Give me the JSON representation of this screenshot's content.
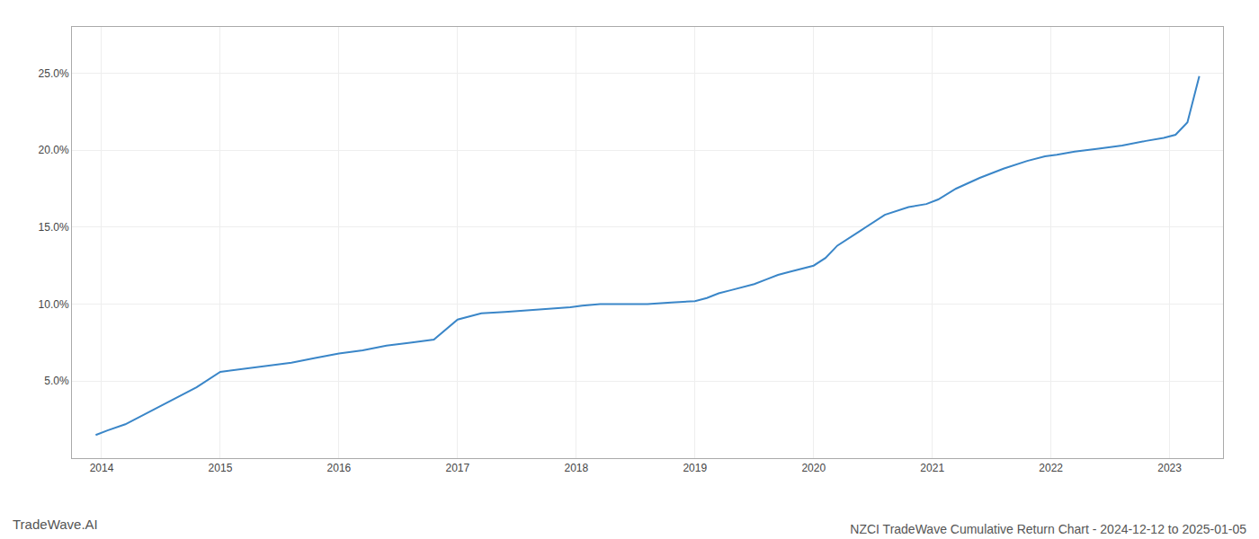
{
  "chart_data": {
    "type": "line",
    "title": "NZCI TradeWave Cumulative Return Chart - 2024-12-12 to 2025-01-05",
    "annotations": [
      "TradeWave.AI"
    ],
    "color": "#3a86c8",
    "grid": true,
    "x": [
      2013.95,
      2014.05,
      2014.2,
      2014.4,
      2014.6,
      2014.8,
      2015.0,
      2015.1,
      2015.2,
      2015.4,
      2015.6,
      2015.8,
      2016.0,
      2016.2,
      2016.4,
      2016.6,
      2016.8,
      2017.0,
      2017.1,
      2017.2,
      2017.4,
      2017.6,
      2017.8,
      2017.95,
      2018.05,
      2018.2,
      2018.4,
      2018.6,
      2018.8,
      2019.0,
      2019.1,
      2019.2,
      2019.3,
      2019.4,
      2019.5,
      2019.6,
      2019.7,
      2019.8,
      2019.9,
      2020.0,
      2020.1,
      2020.2,
      2020.4,
      2020.6,
      2020.8,
      2020.95,
      2021.05,
      2021.2,
      2021.4,
      2021.6,
      2021.8,
      2021.95,
      2022.05,
      2022.2,
      2022.4,
      2022.6,
      2022.8,
      2022.95,
      2023.05,
      2023.15,
      2023.25
    ],
    "values": [
      0.015,
      0.018,
      0.022,
      0.03,
      0.038,
      0.046,
      0.056,
      0.057,
      0.058,
      0.06,
      0.062,
      0.065,
      0.068,
      0.07,
      0.073,
      0.075,
      0.077,
      0.09,
      0.092,
      0.094,
      0.095,
      0.096,
      0.097,
      0.098,
      0.099,
      0.1,
      0.1,
      0.1,
      0.101,
      0.102,
      0.104,
      0.107,
      0.109,
      0.111,
      0.113,
      0.116,
      0.119,
      0.121,
      0.123,
      0.125,
      0.13,
      0.138,
      0.148,
      0.158,
      0.163,
      0.165,
      0.168,
      0.175,
      0.182,
      0.188,
      0.193,
      0.196,
      0.197,
      0.199,
      0.201,
      0.203,
      0.206,
      0.208,
      0.21,
      0.218,
      0.248
    ],
    "xlim": [
      2013.75,
      2023.45
    ],
    "xticks": [
      2014,
      2015,
      2016,
      2017,
      2018,
      2019,
      2020,
      2021,
      2022,
      2023
    ],
    "ylim": [
      0.0,
      0.28
    ],
    "yticks": [
      {
        "value": 0.05,
        "label": "5.0%"
      },
      {
        "value": 0.1,
        "label": "10.0%"
      },
      {
        "value": 0.15,
        "label": "15.0%"
      },
      {
        "value": 0.2,
        "label": "20.0%"
      },
      {
        "value": 0.25,
        "label": "25.0%"
      }
    ]
  }
}
